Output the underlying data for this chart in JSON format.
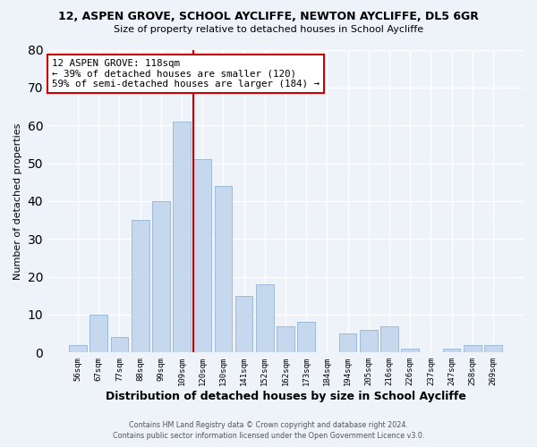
{
  "title": "12, ASPEN GROVE, SCHOOL AYCLIFFE, NEWTON AYCLIFFE, DL5 6GR",
  "subtitle": "Size of property relative to detached houses in School Aycliffe",
  "xlabel": "Distribution of detached houses by size in School Aycliffe",
  "ylabel": "Number of detached properties",
  "bar_labels": [
    "56sqm",
    "67sqm",
    "77sqm",
    "88sqm",
    "99sqm",
    "109sqm",
    "120sqm",
    "130sqm",
    "141sqm",
    "152sqm",
    "162sqm",
    "173sqm",
    "184sqm",
    "194sqm",
    "205sqm",
    "216sqm",
    "226sqm",
    "237sqm",
    "247sqm",
    "258sqm",
    "269sqm"
  ],
  "bar_values": [
    2,
    10,
    4,
    35,
    40,
    61,
    51,
    44,
    15,
    18,
    7,
    8,
    0,
    5,
    6,
    7,
    1,
    0,
    1,
    2,
    2
  ],
  "bar_color": "#c5d8ee",
  "bar_edge_color": "#9dbad8",
  "vline_index": 6,
  "vline_color": "#cc0000",
  "annotation_line1": "12 ASPEN GROVE: 118sqm",
  "annotation_line2": "← 39% of detached houses are smaller (120)",
  "annotation_line3": "59% of semi-detached houses are larger (184) →",
  "annotation_box_facecolor": "#ffffff",
  "annotation_box_edgecolor": "#cc0000",
  "ylim": [
    0,
    80
  ],
  "yticks": [
    0,
    10,
    20,
    30,
    40,
    50,
    60,
    70,
    80
  ],
  "footer_line1": "Contains HM Land Registry data © Crown copyright and database right 2024.",
  "footer_line2": "Contains public sector information licensed under the Open Government Licence v3.0.",
  "background_color": "#eef2f9",
  "grid_color": "#ffffff",
  "title_fontsize": 9,
  "subtitle_fontsize": 8,
  "ylabel_fontsize": 8,
  "xlabel_fontsize": 9
}
